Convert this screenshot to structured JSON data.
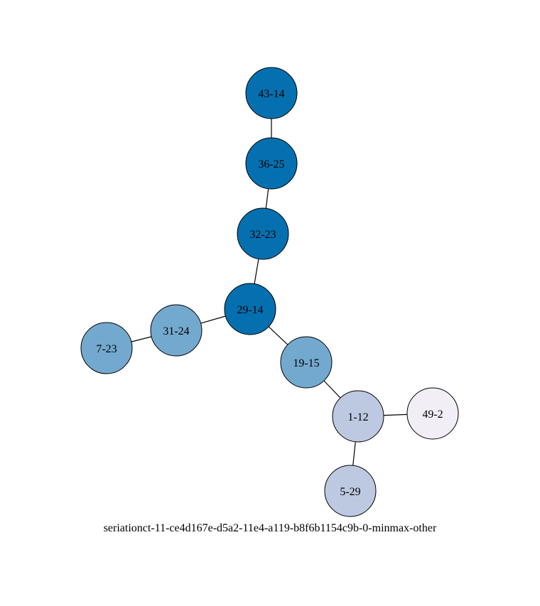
{
  "diagram": {
    "caption": "seriationct-11-ce4d167e-d5a2-11e4-a119-b8f6b1154c9b-0-minmax-other",
    "colors": {
      "dark_blue": "#0570b0",
      "medium_blue": "#74a9cf",
      "light_blue": "#bdc9e1",
      "pale": "#f1eef6"
    },
    "nodes": [
      {
        "id": "43-14",
        "label": "43-14",
        "color": "#0570b0"
      },
      {
        "id": "36-25",
        "label": "36-25",
        "color": "#0570b0"
      },
      {
        "id": "32-23",
        "label": "32-23",
        "color": "#0570b0"
      },
      {
        "id": "29-14",
        "label": "29-14",
        "color": "#0570b0"
      },
      {
        "id": "31-24",
        "label": "31-24",
        "color": "#74a9cf"
      },
      {
        "id": "7-23",
        "label": "7-23",
        "color": "#74a9cf"
      },
      {
        "id": "19-15",
        "label": "19-15",
        "color": "#74a9cf"
      },
      {
        "id": "1-12",
        "label": "1-12",
        "color": "#bdc9e1"
      },
      {
        "id": "49-2",
        "label": "49-2",
        "color": "#f1eef6"
      },
      {
        "id": "5-29",
        "label": "5-29",
        "color": "#bdc9e1"
      }
    ],
    "edges": [
      {
        "source": "43-14",
        "target": "36-25"
      },
      {
        "source": "36-25",
        "target": "32-23"
      },
      {
        "source": "32-23",
        "target": "29-14"
      },
      {
        "source": "29-14",
        "target": "31-24"
      },
      {
        "source": "31-24",
        "target": "7-23"
      },
      {
        "source": "29-14",
        "target": "19-15"
      },
      {
        "source": "19-15",
        "target": "1-12"
      },
      {
        "source": "1-12",
        "target": "49-2"
      },
      {
        "source": "1-12",
        "target": "5-29"
      }
    ]
  }
}
